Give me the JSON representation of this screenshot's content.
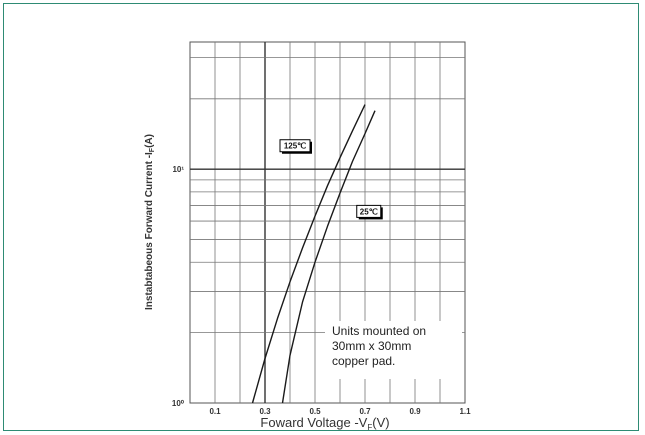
{
  "chart_data": {
    "type": "line",
    "title": "",
    "xlabel": "Foward Voltage -V",
    "xlabel_sub": "F",
    "xlabel_unit": "(V)",
    "ylabel": "Instabtabeous Forward Current -I",
    "ylabel_sub": "F",
    "ylabel_unit": "(A)",
    "x_scale": "linear",
    "y_scale": "log",
    "xlim": [
      0.0,
      1.1
    ],
    "ylim": [
      1,
      35
    ],
    "x_ticks": [
      0.1,
      0.3,
      0.5,
      0.7,
      0.9,
      1.1
    ],
    "x_tick_labels": [
      "0.1",
      "0.3",
      "0.5",
      "0.7",
      "0.9",
      "1.1"
    ],
    "y_ticks": [
      1,
      10
    ],
    "y_tick_labels": [
      "10⁰",
      "10¹"
    ],
    "grid": true,
    "annotation": {
      "lines": [
        "Units mounted on",
        "30mm x 30mm",
        "copper pad."
      ]
    },
    "series": [
      {
        "name": "125℃",
        "x": [
          0.25,
          0.3,
          0.35,
          0.4,
          0.45,
          0.5,
          0.55,
          0.6,
          0.65,
          0.7
        ],
        "y": [
          1.0,
          1.55,
          2.3,
          3.3,
          4.6,
          6.3,
          8.5,
          11.2,
          14.6,
          18.9
        ]
      },
      {
        "name": "25℃",
        "x": [
          0.37,
          0.4,
          0.45,
          0.5,
          0.55,
          0.6,
          0.65,
          0.7,
          0.74
        ],
        "y": [
          1.0,
          1.6,
          2.7,
          4.0,
          5.7,
          7.9,
          10.8,
          14.2,
          17.8
        ]
      }
    ],
    "labels": [
      {
        "series": "125℃",
        "text": "125℃",
        "x": 0.42,
        "y": 12.6
      },
      {
        "series": "25℃",
        "text": "25℃",
        "x": 0.715,
        "y": 6.6
      }
    ]
  }
}
